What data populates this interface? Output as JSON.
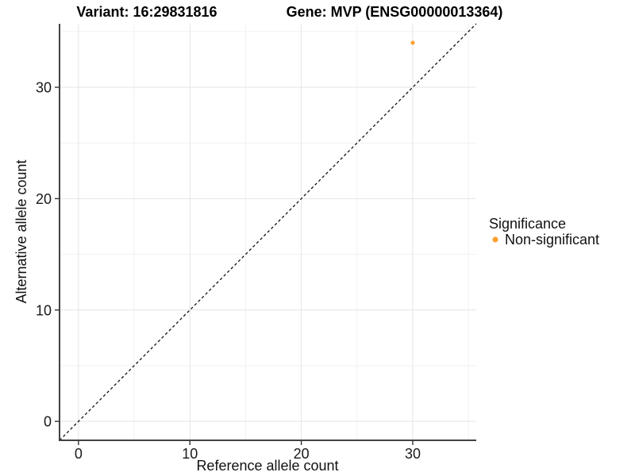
{
  "titles": {
    "variant": "Variant: 16:29831816",
    "gene": "Gene: MVP (ENSG00000013364)"
  },
  "chart_data": {
    "type": "scatter",
    "title_left": "Variant: 16:29831816",
    "title_right": "Gene: MVP (ENSG00000013364)",
    "xlabel": "Reference allele count",
    "ylabel": "Alternative allele count",
    "xlim": [
      -1.7,
      35.7
    ],
    "ylim": [
      -1.7,
      35.7
    ],
    "xticks": [
      0,
      10,
      20,
      30
    ],
    "yticks": [
      0,
      10,
      20,
      30
    ],
    "xminor": [
      5,
      15,
      25,
      35
    ],
    "yminor": [
      5,
      15,
      25,
      35
    ],
    "grid": true,
    "legend_position": "right",
    "points": [
      {
        "x": 30,
        "y": 34,
        "series": "Non-significant"
      }
    ],
    "reference_line": {
      "kind": "identity",
      "style": "dashed"
    },
    "legend": {
      "title": "Significance",
      "entries": [
        {
          "label": "Non-significant",
          "marker": "circle",
          "color": "#FBA233"
        }
      ]
    },
    "colors": {
      "point": "#FBA233",
      "grid_major": "#e4e4e4",
      "grid_minor": "#f1f1f1",
      "axis_line": "#424242",
      "tick_mark": "#333333",
      "dashed_line": "#111111",
      "panel_background": "#ffffff",
      "text": "#000000"
    }
  }
}
